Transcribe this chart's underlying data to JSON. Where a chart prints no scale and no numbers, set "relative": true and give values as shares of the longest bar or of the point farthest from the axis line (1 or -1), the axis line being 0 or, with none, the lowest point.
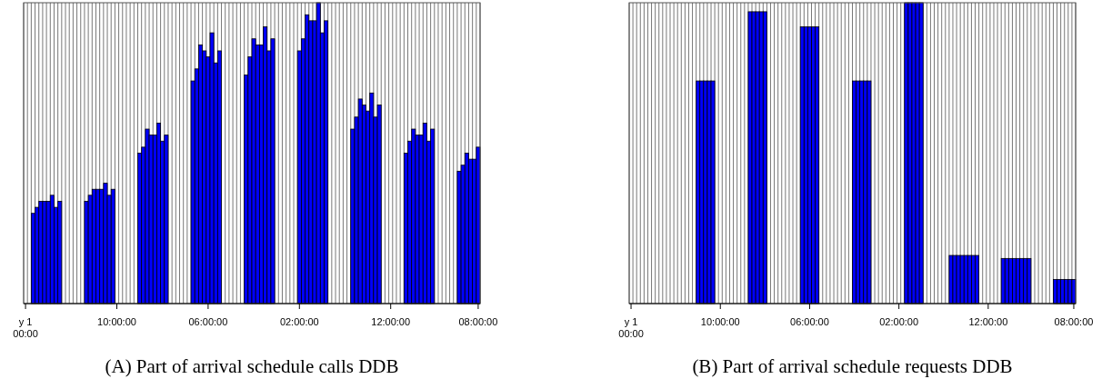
{
  "chart_data": [
    {
      "type": "bar",
      "title": "(A) Part of arrival schedule calls DDB",
      "relative": true,
      "color": "#0000ff",
      "grid": "x",
      "categories": [
        "y 1\n00:00",
        null,
        null,
        null,
        null,
        null,
        null,
        null,
        null,
        null,
        null,
        null,
        null,
        null,
        null,
        null,
        null,
        null,
        null,
        null,
        null,
        null,
        null,
        null,
        "10:00:00",
        null,
        null,
        null,
        null,
        null,
        null,
        null,
        null,
        null,
        null,
        null,
        null,
        null,
        null,
        null,
        null,
        null,
        null,
        null,
        null,
        null,
        null,
        null,
        "06:00:00",
        null,
        null,
        null,
        null,
        null,
        null,
        null,
        null,
        null,
        null,
        null,
        null,
        null,
        null,
        null,
        null,
        null,
        null,
        null,
        null,
        null,
        null,
        null,
        "02:00:00",
        null,
        null,
        null,
        null,
        null,
        null,
        null,
        null,
        null,
        null,
        null,
        null,
        null,
        null,
        null,
        null,
        null,
        null,
        null,
        null,
        null,
        null,
        null,
        "12:00:00",
        null,
        null,
        null,
        null,
        null,
        null,
        null,
        null,
        null,
        null,
        null,
        null,
        null,
        null,
        null,
        null,
        null,
        null,
        null,
        null,
        null,
        null,
        "08:00:00"
      ],
      "values": [
        null,
        null,
        0.3,
        0.32,
        0.34,
        0.34,
        0.34,
        0.36,
        0.32,
        0.34,
        null,
        null,
        null,
        null,
        null,
        null,
        0.34,
        0.36,
        0.38,
        0.38,
        0.38,
        0.4,
        0.36,
        0.38,
        null,
        null,
        null,
        null,
        null,
        null,
        0.5,
        0.52,
        0.58,
        0.56,
        0.56,
        0.6,
        0.54,
        0.56,
        null,
        null,
        null,
        null,
        null,
        null,
        0.74,
        0.78,
        0.86,
        0.84,
        0.82,
        0.9,
        0.8,
        0.84,
        null,
        null,
        null,
        null,
        null,
        null,
        0.76,
        0.82,
        0.88,
        0.86,
        0.86,
        0.92,
        0.84,
        0.88,
        null,
        null,
        null,
        null,
        null,
        null,
        0.84,
        0.88,
        0.96,
        0.94,
        0.94,
        1,
        0.9,
        0.94,
        null,
        null,
        null,
        null,
        null,
        null,
        0.58,
        0.62,
        0.68,
        0.66,
        0.64,
        0.7,
        0.62,
        0.66,
        null,
        null,
        null,
        null,
        null,
        null,
        0.5,
        0.54,
        0.58,
        0.56,
        0.56,
        0.6,
        0.54,
        0.58,
        null,
        null,
        null,
        null,
        null,
        null,
        0.44,
        0.46,
        0.5,
        0.48,
        0.48,
        0.52
      ]
    },
    {
      "type": "bar",
      "title": "(B) Part of arrival schedule requests DDB",
      "relative": true,
      "color": "#0000ff",
      "grid": "x",
      "categories": [
        "y 1\n00:00",
        null,
        null,
        null,
        null,
        null,
        null,
        null,
        null,
        null,
        null,
        null,
        null,
        null,
        null,
        null,
        null,
        null,
        null,
        null,
        null,
        null,
        null,
        null,
        "10:00:00",
        null,
        null,
        null,
        null,
        null,
        null,
        null,
        null,
        null,
        null,
        null,
        null,
        null,
        null,
        null,
        null,
        null,
        null,
        null,
        null,
        null,
        null,
        null,
        "06:00:00",
        null,
        null,
        null,
        null,
        null,
        null,
        null,
        null,
        null,
        null,
        null,
        null,
        null,
        null,
        null,
        null,
        null,
        null,
        null,
        null,
        null,
        null,
        null,
        "02:00:00",
        null,
        null,
        null,
        null,
        null,
        null,
        null,
        null,
        null,
        null,
        null,
        null,
        null,
        null,
        null,
        null,
        null,
        null,
        null,
        null,
        null,
        null,
        null,
        "12:00:00",
        null,
        null,
        null,
        null,
        null,
        null,
        null,
        null,
        null,
        null,
        null,
        null,
        null,
        null,
        null,
        null,
        null,
        null,
        null,
        null,
        null,
        null,
        "08:00:00"
      ],
      "values": [
        null,
        null,
        null,
        null,
        null,
        null,
        null,
        null,
        null,
        null,
        null,
        null,
        null,
        null,
        null,
        null,
        null,
        null,
        0.74,
        0.74,
        0.74,
        0.74,
        0.74,
        null,
        null,
        null,
        null,
        null,
        null,
        null,
        null,
        null,
        0.97,
        0.97,
        0.97,
        0.97,
        0.97,
        null,
        null,
        null,
        null,
        null,
        null,
        null,
        null,
        null,
        0.92,
        0.92,
        0.92,
        0.92,
        0.92,
        null,
        null,
        null,
        null,
        null,
        null,
        null,
        null,
        null,
        0.74,
        0.74,
        0.74,
        0.74,
        0.74,
        null,
        null,
        null,
        null,
        null,
        null,
        null,
        null,
        null,
        1,
        1,
        1,
        1,
        1,
        null,
        null,
        null,
        null,
        null,
        null,
        null,
        0.16,
        0.16,
        0.16,
        0.16,
        0.16,
        0.16,
        0.16,
        0.16,
        null,
        null,
        null,
        null,
        null,
        null,
        0.15,
        0.15,
        0.15,
        0.15,
        0.15,
        0.15,
        0.15,
        0.15,
        null,
        null,
        null,
        null,
        null,
        null,
        0.08,
        0.08,
        0.08,
        0.08,
        0.08,
        0.08
      ]
    }
  ]
}
